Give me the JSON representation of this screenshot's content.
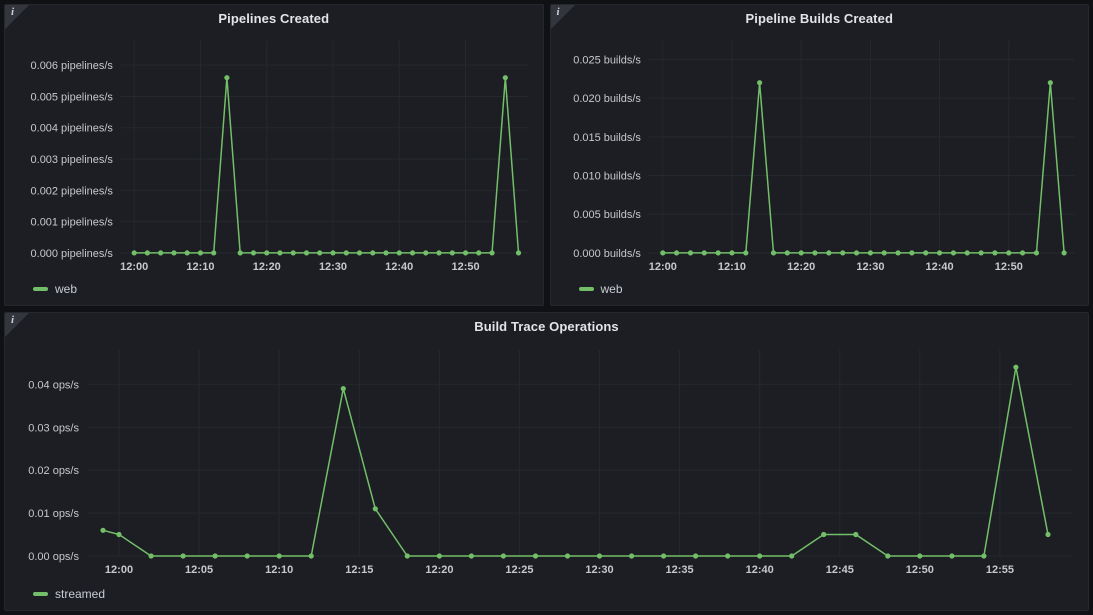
{
  "colors": {
    "page_bg": "#0f1114",
    "panel_bg": "#1c1e23",
    "panel_border": "#26282d",
    "grid": "#25282d",
    "tick_text": "#c7c8ca",
    "title_text": "#e3e4e8",
    "legend_text": "#c7cdd4",
    "series_green": "#73bf69",
    "info_corner": "#33363c"
  },
  "panels": [
    {
      "title": "Pipelines Created",
      "info_icon": "i",
      "legend": [
        {
          "label": "web",
          "color": "#73bf69"
        }
      ]
    },
    {
      "title": "Pipeline Builds Created",
      "info_icon": "i",
      "legend": [
        {
          "label": "web",
          "color": "#73bf69"
        }
      ]
    },
    {
      "title": "Build Trace Operations",
      "info_icon": "i",
      "legend": [
        {
          "label": "streamed",
          "color": "#73bf69"
        }
      ]
    }
  ],
  "chart_data": [
    {
      "type": "line",
      "title": "Pipelines Created",
      "unit": "pipelines/s",
      "grid": true,
      "legend_position": "bottom-left",
      "xlim": [
        -2,
        59.5
      ],
      "ylim": [
        0,
        0.0068
      ],
      "xticks": [
        0,
        10,
        20,
        30,
        40,
        50
      ],
      "xtick_labels": [
        "12:00",
        "12:10",
        "12:20",
        "12:30",
        "12:40",
        "12:50"
      ],
      "yticks": [
        0,
        0.001,
        0.002,
        0.003,
        0.004,
        0.005,
        0.006
      ],
      "ytick_labels": [
        "0.000 pipelines/s",
        "0.001 pipelines/s",
        "0.002 pipelines/s",
        "0.003 pipelines/s",
        "0.004 pipelines/s",
        "0.005 pipelines/s",
        "0.006 pipelines/s"
      ],
      "series": [
        {
          "name": "web",
          "color": "#73bf69",
          "x": [
            0,
            2,
            4,
            6,
            8,
            10,
            12,
            14,
            16,
            18,
            20,
            22,
            24,
            26,
            28,
            30,
            32,
            34,
            36,
            38,
            40,
            42,
            44,
            46,
            48,
            50,
            52,
            54,
            56,
            58
          ],
          "y": [
            0,
            0,
            0,
            0,
            0,
            0,
            0,
            0.0056,
            0,
            0,
            0,
            0,
            0,
            0,
            0,
            0,
            0,
            0,
            0,
            0,
            0,
            0,
            0,
            0,
            0,
            0,
            0,
            0,
            0.0056,
            0
          ]
        }
      ]
    },
    {
      "type": "line",
      "title": "Pipeline Builds Created",
      "unit": "builds/s",
      "grid": true,
      "legend_position": "bottom-left",
      "xlim": [
        -2,
        59.5
      ],
      "ylim": [
        0,
        0.0275
      ],
      "xticks": [
        0,
        10,
        20,
        30,
        40,
        50
      ],
      "xtick_labels": [
        "12:00",
        "12:10",
        "12:20",
        "12:30",
        "12:40",
        "12:50"
      ],
      "yticks": [
        0,
        0.005,
        0.01,
        0.015,
        0.02,
        0.025
      ],
      "ytick_labels": [
        "0.000 builds/s",
        "0.005 builds/s",
        "0.010 builds/s",
        "0.015 builds/s",
        "0.020 builds/s",
        "0.025 builds/s"
      ],
      "series": [
        {
          "name": "web",
          "color": "#73bf69",
          "x": [
            0,
            2,
            4,
            6,
            8,
            10,
            12,
            14,
            16,
            18,
            20,
            22,
            24,
            26,
            28,
            30,
            32,
            34,
            36,
            38,
            40,
            42,
            44,
            46,
            48,
            50,
            52,
            54,
            56,
            58
          ],
          "y": [
            0,
            0,
            0,
            0,
            0,
            0,
            0,
            0.022,
            0,
            0,
            0,
            0,
            0,
            0,
            0,
            0,
            0,
            0,
            0,
            0,
            0,
            0,
            0,
            0,
            0,
            0,
            0,
            0,
            0.022,
            0
          ]
        }
      ]
    },
    {
      "type": "line",
      "title": "Build Trace Operations",
      "unit": "ops/s",
      "grid": true,
      "legend_position": "bottom-left",
      "xlim": [
        -2,
        59.5
      ],
      "ylim": [
        0,
        0.048
      ],
      "xticks": [
        0,
        5,
        10,
        15,
        20,
        25,
        30,
        35,
        40,
        45,
        50,
        55
      ],
      "xtick_labels": [
        "12:00",
        "12:05",
        "12:10",
        "12:15",
        "12:20",
        "12:25",
        "12:30",
        "12:35",
        "12:40",
        "12:45",
        "12:50",
        "12:55"
      ],
      "yticks": [
        0,
        0.01,
        0.02,
        0.03,
        0.04
      ],
      "ytick_labels": [
        "0.00 ops/s",
        "0.01 ops/s",
        "0.02 ops/s",
        "0.03 ops/s",
        "0.04 ops/s"
      ],
      "series": [
        {
          "name": "streamed",
          "color": "#73bf69",
          "x": [
            -1,
            0,
            2,
            4,
            6,
            8,
            10,
            12,
            14,
            16,
            18,
            20,
            22,
            24,
            26,
            28,
            30,
            32,
            34,
            36,
            38,
            40,
            42,
            44,
            46,
            48,
            50,
            52,
            54,
            56,
            58
          ],
          "y": [
            0.006,
            0.005,
            0,
            0,
            0,
            0,
            0,
            0,
            0.039,
            0.011,
            0,
            0,
            0,
            0,
            0,
            0,
            0,
            0,
            0,
            0,
            0,
            0,
            0,
            0.005,
            0.005,
            0,
            0,
            0,
            0,
            0.044,
            0.005
          ]
        }
      ]
    }
  ]
}
